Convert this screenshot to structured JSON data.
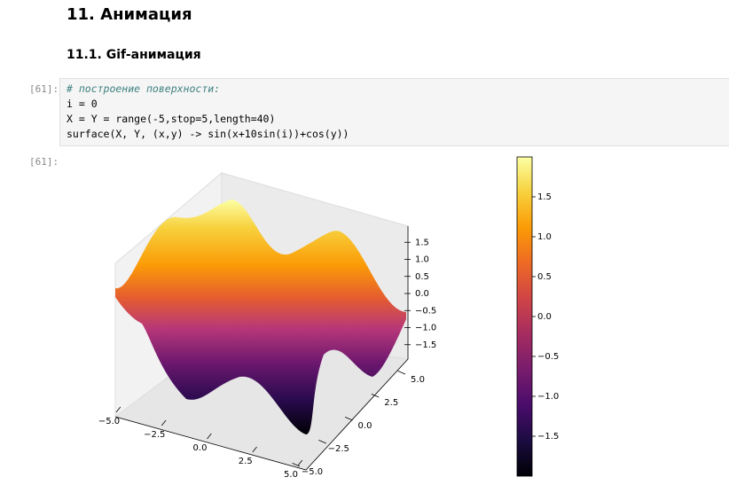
{
  "heading": "11. Анимация",
  "subheading": "11.1. Gif-анимация",
  "cell": {
    "prompt": "[61]:",
    "code": [
      "# построение поверхности:",
      "i = 0",
      "X = Y = range(-5,stop=5,length=40)",
      "surface(X, Y, (x,y) -> sin(x+10sin(i))+cos(y))"
    ]
  },
  "output": {
    "prompt": "[61]:"
  },
  "chart_data": {
    "type": "surface",
    "colormap": "inferno",
    "xlim": [
      -5,
      5
    ],
    "xticks": [
      {
        "value": -5,
        "label": "−5.0"
      },
      {
        "value": -2.5,
        "label": "−2.5"
      },
      {
        "value": 0,
        "label": "0.0"
      },
      2.5,
      {
        "value": 5,
        "label": "5.0"
      }
    ],
    "ylim": [
      -5,
      5
    ],
    "yticks": [
      {
        "value": -5,
        "label": "−5.0"
      },
      {
        "value": -2.5,
        "label": "−2.5"
      },
      {
        "value": 0,
        "label": "0.0"
      },
      2.5,
      {
        "value": 5,
        "label": "5.0"
      }
    ],
    "zlim": [
      -2,
      2
    ],
    "zticks": [
      {
        "value": -1.5,
        "label": "−1.5"
      },
      {
        "value": -1,
        "label": "−1.0"
      },
      {
        "value": -0.5,
        "label": "−0.5"
      },
      {
        "value": 0,
        "label": "0.0"
      },
      0.5,
      {
        "value": 1,
        "label": "1.0"
      },
      1.5
    ],
    "colorbar": {
      "lim": [
        -2,
        2
      ],
      "ticks": [
        {
          "value": -1.5,
          "label": "−1.5"
        },
        {
          "value": -1,
          "label": "−1.0"
        },
        {
          "value": -0.5,
          "label": "−0.5"
        },
        {
          "value": 0,
          "label": "0.0"
        },
        0.5,
        {
          "value": 1,
          "label": "1.0"
        },
        1.5
      ]
    }
  }
}
